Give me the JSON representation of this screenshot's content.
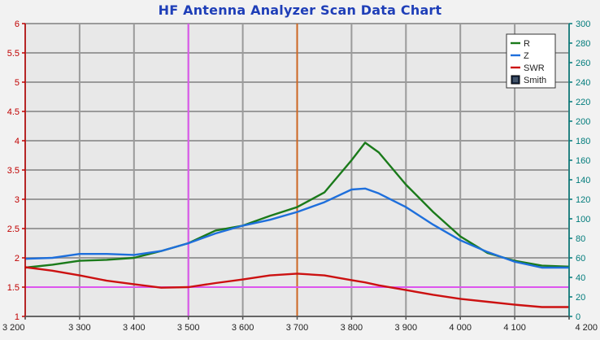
{
  "chart_data": {
    "type": "line",
    "title": "HF Antenna Analyzer Scan Data Chart",
    "x": [
      3200,
      3250,
      3300,
      3350,
      3400,
      3450,
      3500,
      3550,
      3600,
      3650,
      3700,
      3750,
      3800,
      3825,
      3850,
      3900,
      3950,
      4000,
      4050,
      4100,
      4150,
      4200
    ],
    "x_ticks": [
      3200,
      3300,
      3400,
      3500,
      3600,
      3700,
      3800,
      3900,
      4000,
      4100,
      4200
    ],
    "x_tick_labels": [
      "3 200",
      "3 300",
      "3 400",
      "3 500",
      "3 600",
      "3 700",
      "3 800",
      "3 900",
      "4 000",
      "4 100",
      "4 200"
    ],
    "xlim": [
      3200,
      4200
    ],
    "y_left": {
      "range": [
        1,
        6
      ],
      "ticks": [
        1,
        1.5,
        2,
        2.5,
        3,
        3.5,
        4,
        4.5,
        5,
        5.5,
        6
      ],
      "tick_labels": [
        "1",
        "1.5",
        "2",
        "2.5",
        "3",
        "3.5",
        "4",
        "4.5",
        "5",
        "5.5",
        "6"
      ],
      "color": "#c00000"
    },
    "y_right": {
      "range": [
        0,
        300
      ],
      "ticks": [
        0,
        20,
        40,
        60,
        80,
        100,
        120,
        140,
        160,
        180,
        200,
        220,
        240,
        260,
        280,
        300
      ],
      "tick_labels": [
        "0",
        "20",
        "40",
        "60",
        "80",
        "100",
        "120",
        "140",
        "160",
        "180",
        "200",
        "220",
        "240",
        "260",
        "280",
        "300"
      ],
      "color": "#007b7b"
    },
    "series": [
      {
        "name": "R",
        "axis": "right",
        "color": "#1a7a1a",
        "values": [
          50,
          53,
          57,
          58,
          60,
          67,
          75,
          88,
          93,
          103,
          112,
          127,
          160,
          178,
          168,
          135,
          107,
          82,
          65,
          57,
          52,
          51
        ]
      },
      {
        "name": "Z",
        "axis": "right",
        "color": "#1e6fdc",
        "values": [
          59,
          60,
          64,
          64,
          63,
          67,
          75,
          85,
          93,
          99,
          107,
          117,
          130,
          131,
          126,
          112,
          94,
          78,
          66,
          56,
          50,
          50
        ]
      },
      {
        "name": "SWR",
        "axis": "left",
        "color": "#cc1111",
        "values": [
          1.84,
          1.78,
          1.7,
          1.61,
          1.55,
          1.49,
          1.5,
          1.57,
          1.63,
          1.7,
          1.73,
          1.7,
          1.62,
          1.58,
          1.53,
          1.45,
          1.37,
          1.3,
          1.25,
          1.2,
          1.16,
          1.16
        ]
      }
    ],
    "markers": [
      {
        "x": 3500,
        "color": "#dd55ee"
      },
      {
        "x": 3700,
        "color": "#cc6622"
      },
      {
        "y_left": 1.5,
        "color": "#dd55ee"
      }
    ],
    "legend": {
      "position": "top-right",
      "items": [
        {
          "label": "R",
          "color": "#1a7a1a",
          "kind": "line"
        },
        {
          "label": "Z",
          "color": "#1e6fdc",
          "kind": "line"
        },
        {
          "label": "SWR",
          "color": "#cc1111",
          "kind": "line"
        },
        {
          "label": "Smith",
          "color": "#1a2a44",
          "kind": "checkbox"
        }
      ]
    },
    "grid": true
  }
}
